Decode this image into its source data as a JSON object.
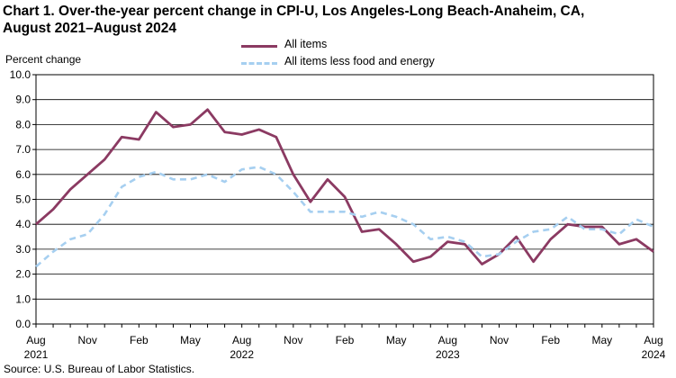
{
  "title_lines": [
    "Chart 1. Over-the-year percent change in CPI-U, Los Angeles-Long  Beach-Anaheim,  CA,",
    "August 2021–August  2024"
  ],
  "source": "Source:  U.S. Bureau  of Labor Statistics.",
  "chart_data": {
    "type": "line",
    "title": "Chart 1. Over-the-year percent change in CPI-U, Los Angeles-Long Beach-Anaheim, CA, August 2021–August 2024",
    "ylabel": "Percent change",
    "xlabel": "",
    "ylim": [
      0,
      10
    ],
    "yticks": [
      "0.0",
      "1.0",
      "2.0",
      "3.0",
      "4.0",
      "5.0",
      "6.0",
      "7.0",
      "8.0",
      "9.0",
      "10.0"
    ],
    "grid": true,
    "legend_position": "top-center",
    "x": [
      "Aug 2021",
      "Sep 2021",
      "Oct 2021",
      "Nov 2021",
      "Dec 2021",
      "Jan 2022",
      "Feb 2022",
      "Mar 2022",
      "Apr 2022",
      "May 2022",
      "Jun 2022",
      "Jul 2022",
      "Aug 2022",
      "Sep 2022",
      "Oct 2022",
      "Nov 2022",
      "Dec 2022",
      "Jan 2023",
      "Feb 2023",
      "Mar 2023",
      "Apr 2023",
      "May 2023",
      "Jun 2023",
      "Jul 2023",
      "Aug 2023",
      "Sep 2023",
      "Oct 2023",
      "Nov 2023",
      "Dec 2023",
      "Jan 2024",
      "Feb 2024",
      "Mar 2024",
      "Apr 2024",
      "May 2024",
      "Jun 2024",
      "Jul 2024",
      "Aug 2024"
    ],
    "xtick_labels": [
      {
        "index": 0,
        "label": "Aug",
        "year": "2021"
      },
      {
        "index": 3,
        "label": "Nov",
        "year": ""
      },
      {
        "index": 6,
        "label": "Feb",
        "year": ""
      },
      {
        "index": 9,
        "label": "May",
        "year": ""
      },
      {
        "index": 12,
        "label": "Aug",
        "year": "2022"
      },
      {
        "index": 15,
        "label": "Nov",
        "year": ""
      },
      {
        "index": 18,
        "label": "Feb",
        "year": ""
      },
      {
        "index": 21,
        "label": "May",
        "year": ""
      },
      {
        "index": 24,
        "label": "Aug",
        "year": "2023"
      },
      {
        "index": 27,
        "label": "Nov",
        "year": ""
      },
      {
        "index": 30,
        "label": "Feb",
        "year": ""
      },
      {
        "index": 33,
        "label": "May",
        "year": ""
      },
      {
        "index": 36,
        "label": "Aug",
        "year": "2024"
      }
    ],
    "series": [
      {
        "name": "All items",
        "color": "#8b3a62",
        "style": "solid",
        "values": [
          4.0,
          4.6,
          5.4,
          6.0,
          6.6,
          7.5,
          7.4,
          8.5,
          7.9,
          8.0,
          8.6,
          7.7,
          7.6,
          7.8,
          7.5,
          6.0,
          4.9,
          5.8,
          5.1,
          3.7,
          3.8,
          3.2,
          2.5,
          2.7,
          3.3,
          3.2,
          2.4,
          2.8,
          3.5,
          2.5,
          3.4,
          4.0,
          3.9,
          3.9,
          3.2,
          3.4,
          2.9
        ]
      },
      {
        "name": "All items less food and energy",
        "color": "#a6cff0",
        "style": "dashed",
        "values": [
          2.3,
          2.9,
          3.4,
          3.6,
          4.4,
          5.5,
          5.9,
          6.1,
          5.8,
          5.8,
          6.0,
          5.7,
          6.2,
          6.3,
          6.0,
          5.3,
          4.5,
          4.5,
          4.5,
          4.3,
          4.5,
          4.3,
          4.0,
          3.4,
          3.5,
          3.3,
          2.7,
          2.8,
          3.3,
          3.7,
          3.8,
          4.3,
          3.8,
          3.8,
          3.6,
          4.2,
          3.9
        ]
      }
    ]
  }
}
